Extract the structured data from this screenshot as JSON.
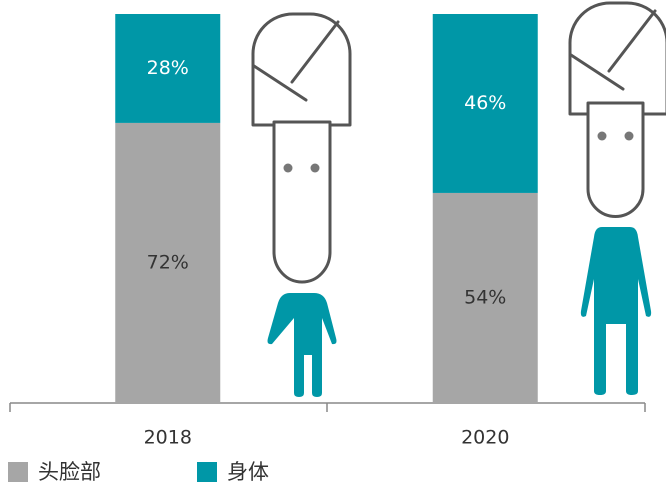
{
  "chart_data": {
    "type": "stacked_bar",
    "categories": [
      "2018",
      "2020"
    ],
    "series": [
      {
        "name": "头脸部",
        "color": "#a6a6a6",
        "values": [
          72,
          54
        ],
        "value_labels": [
          "72%",
          "54%"
        ]
      },
      {
        "name": "身体",
        "color": "#0097a7",
        "values": [
          28,
          46
        ],
        "value_labels": [
          "28%",
          "46%"
        ]
      }
    ],
    "ylim": [
      0,
      100
    ]
  }
}
